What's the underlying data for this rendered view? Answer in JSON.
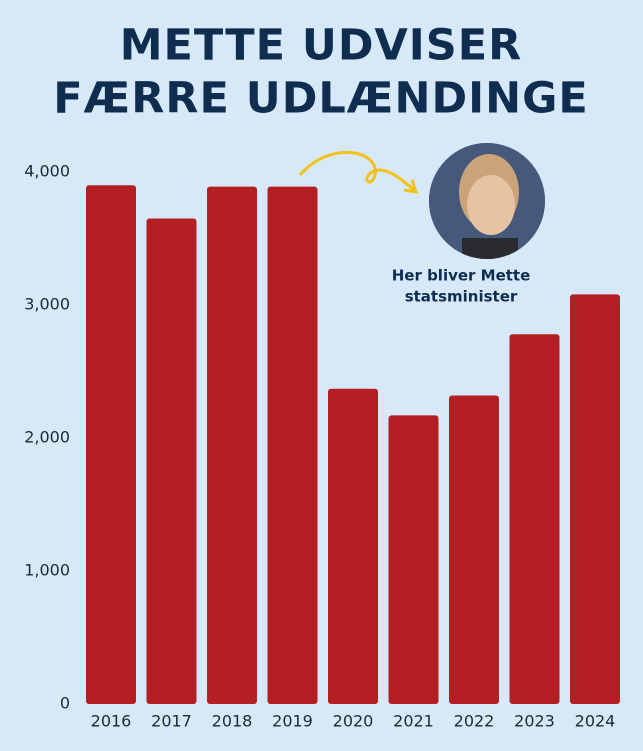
{
  "chart_data": {
    "type": "bar",
    "title": [
      "METTE UDVISER",
      "FÆRRE UDLÆNDINGE"
    ],
    "annotation": [
      "Her bliver Mette",
      "statsminister"
    ],
    "categories": [
      "2016",
      "2017",
      "2018",
      "2019",
      "2020",
      "2021",
      "2022",
      "2023",
      "2024"
    ],
    "values": [
      3900,
      3650,
      3890,
      3890,
      2370,
      2170,
      2320,
      2780,
      3080
    ],
    "color": "#b41f24",
    "ylim": [
      0,
      4000
    ],
    "yticks": [
      0,
      {
        "value": 1000,
        "label": "1,000"
      },
      {
        "value": 2000,
        "label": "2,000"
      },
      {
        "value": 3000,
        "label": "3,000"
      },
      {
        "value": 4000,
        "label": "4,000"
      }
    ],
    "grid": false
  }
}
